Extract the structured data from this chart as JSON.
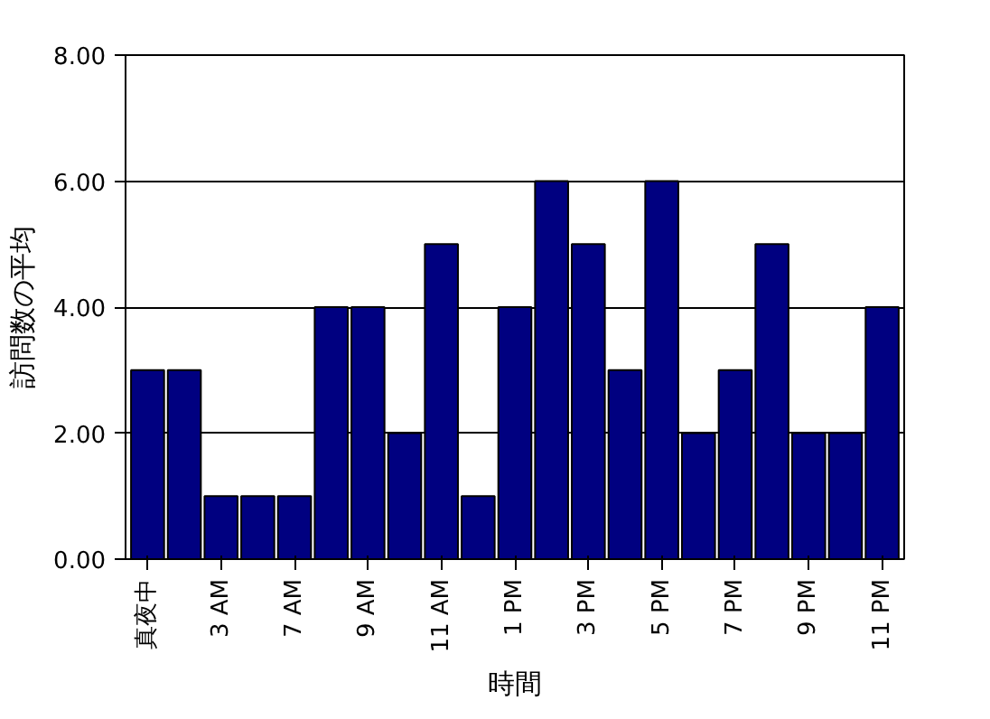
{
  "chart_data": {
    "type": "bar",
    "xlabel": "時間",
    "ylabel": "訪問数の平均",
    "categories": [
      "真夜中",
      null,
      "3 AM",
      null,
      "7 AM",
      null,
      "9 AM",
      null,
      "11 AM",
      null,
      "1 PM",
      null,
      "3 PM",
      null,
      "5 PM",
      null,
      "7 PM",
      null,
      "9 PM",
      null,
      "11 PM"
    ],
    "values": [
      3,
      3,
      1,
      1,
      1,
      4,
      4,
      2,
      5,
      1,
      4,
      6,
      5,
      3,
      6,
      2,
      3,
      5,
      2,
      2,
      4
    ],
    "color": "#000080",
    "ylim": [
      0,
      8
    ],
    "yticks": [
      {
        "value": 0,
        "label": "0.00"
      },
      {
        "value": 2,
        "label": "2.00"
      },
      {
        "value": 4,
        "label": "4.00"
      },
      {
        "value": 6,
        "label": "6.00"
      },
      {
        "value": 8,
        "label": "8.00"
      }
    ],
    "grid": "y"
  }
}
